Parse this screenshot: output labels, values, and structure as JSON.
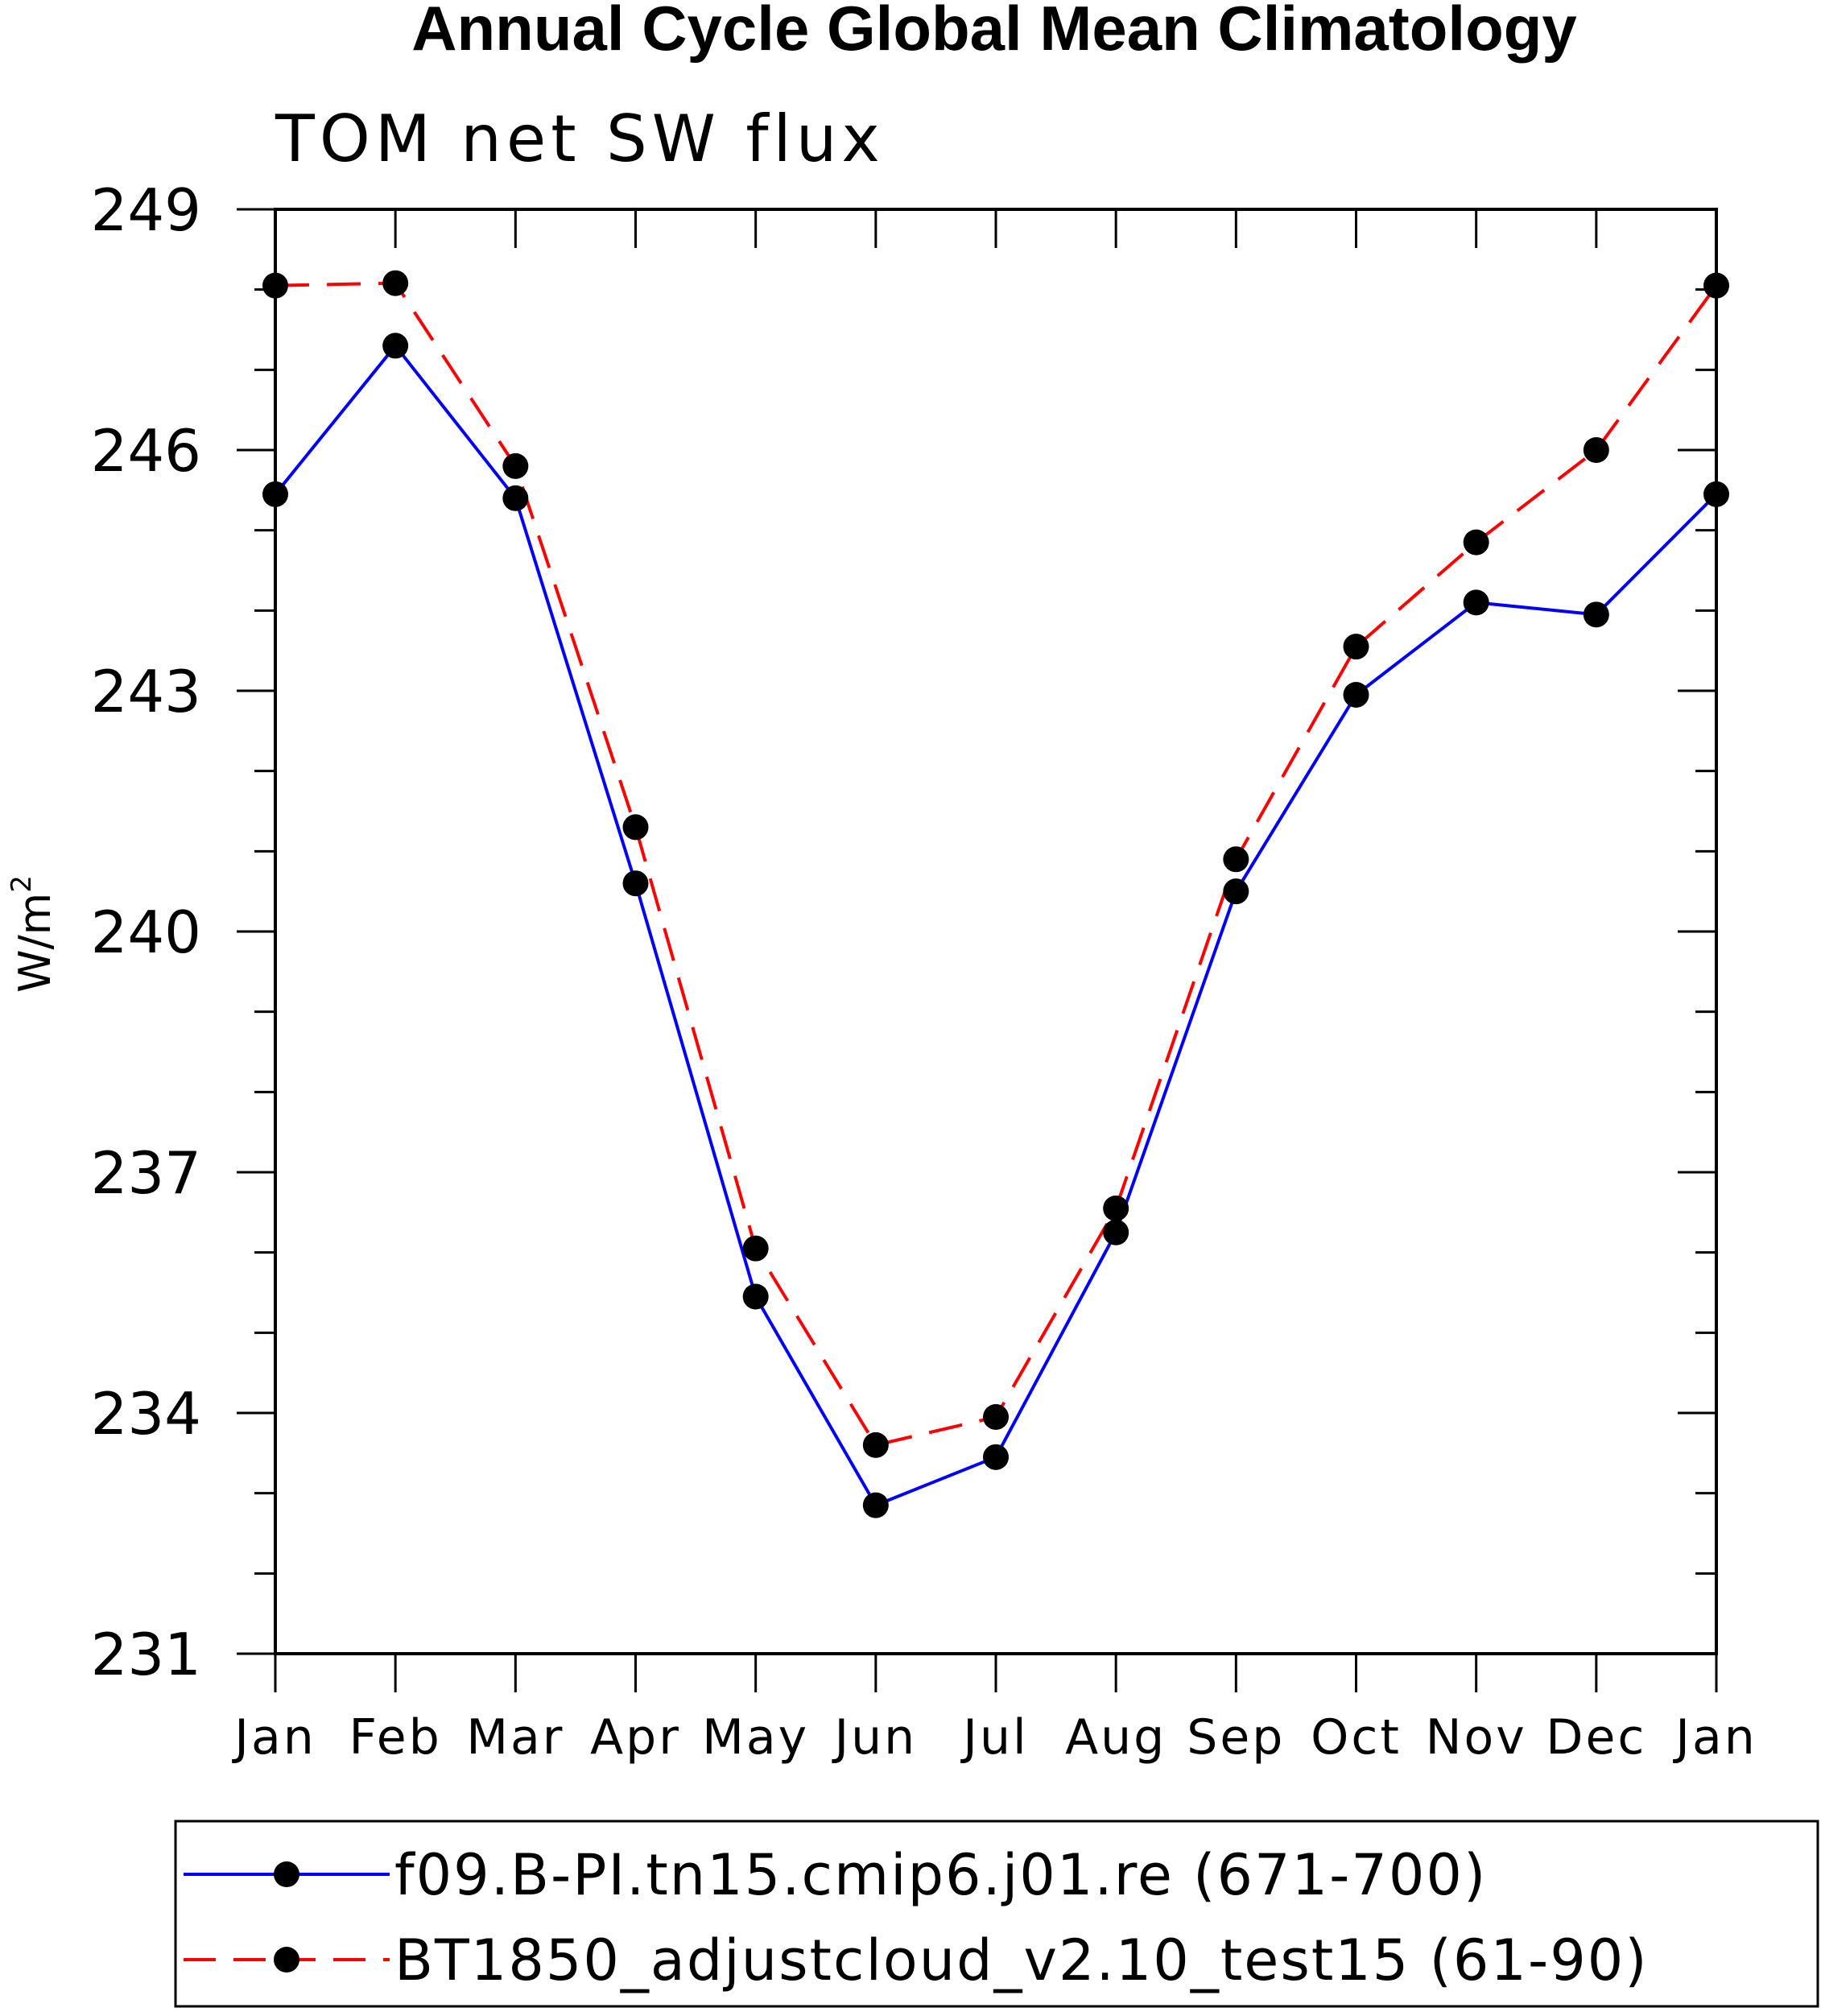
{
  "chart_data": {
    "type": "line",
    "title": "Annual Cycle Global Mean Climatology",
    "subtitle": "TOM net SW flux",
    "ylabel_base": "W/m",
    "ylabel_sup": "2",
    "xlabel": "",
    "categories": [
      "Jan",
      "Feb",
      "Mar",
      "Apr",
      "May",
      "Jun",
      "Jul",
      "Aug",
      "Sep",
      "Oct",
      "Nov",
      "Dec",
      "Jan"
    ],
    "ylim": [
      231,
      249
    ],
    "yticks": [
      231,
      234,
      237,
      240,
      243,
      246,
      249
    ],
    "ytick_labels": [
      "231",
      "234",
      "237",
      "240",
      "243",
      "246",
      "249"
    ],
    "minor_step": 1,
    "series": [
      {
        "name": "f09.B-PI.tn15.cmip6.j01.re (671-700)",
        "color": "#0000ff",
        "style": "solid",
        "values": [
          245.45,
          247.3,
          245.4,
          240.6,
          235.45,
          232.85,
          233.45,
          236.25,
          240.5,
          242.95,
          244.1,
          243.95,
          245.45
        ]
      },
      {
        "name": "BT1850_adjustcloud_v2.10_test15 (61-90)",
        "color": "#ff0000",
        "style": "dashed",
        "values": [
          248.05,
          248.08,
          245.8,
          241.3,
          236.05,
          233.6,
          233.95,
          236.55,
          240.9,
          243.55,
          244.85,
          246.0,
          248.05
        ]
      }
    ],
    "grid": false,
    "legend_position": "bottom"
  }
}
